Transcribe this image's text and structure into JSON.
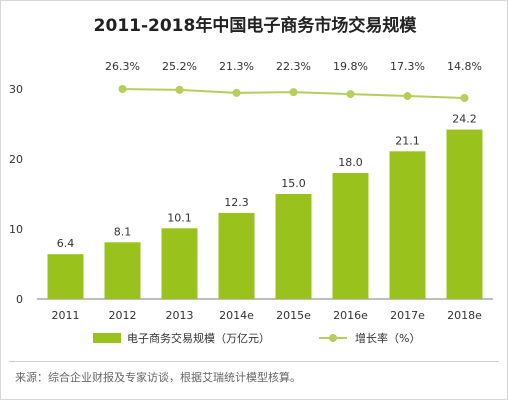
{
  "title": "2011-2018年中国电子商务市场交易规模",
  "source_note": "来源：综合企业财报及专家访谈，根据艾瑞统计模型核算。",
  "chart_data": {
    "type": "bar+line",
    "categories": [
      "2011",
      "2012",
      "2013",
      "2014e",
      "2015e",
      "2016e",
      "2017e",
      "2018e"
    ],
    "series": [
      {
        "name": "电子商务交易规模（万亿元）",
        "type": "bar",
        "values": [
          6.4,
          8.1,
          10.1,
          12.3,
          15.0,
          18.0,
          21.1,
          24.2
        ],
        "value_labels": [
          "6.4",
          "8.1",
          "10.1",
          "12.3",
          "15.0",
          "18.0",
          "21.1",
          "24.2"
        ]
      },
      {
        "name": "增长率（%）",
        "type": "line",
        "values": [
          null,
          26.3,
          25.2,
          21.3,
          22.3,
          19.8,
          17.3,
          14.8
        ],
        "value_labels": [
          "",
          "26.3%",
          "25.2%",
          "21.3%",
          "22.3%",
          "19.8%",
          "17.3%",
          "14.8%"
        ],
        "plot_position": "top-band"
      }
    ],
    "yticks": [
      "0",
      "10",
      "20",
      "30"
    ],
    "ytick_values": [
      0,
      10,
      20,
      30
    ],
    "ylim": [
      0,
      34
    ],
    "grid": false,
    "legend": "bottom",
    "colors": {
      "bar": "#99c31c",
      "line": "#b5cf5a",
      "axis": "#7f7f7f",
      "text": "#333333"
    }
  }
}
